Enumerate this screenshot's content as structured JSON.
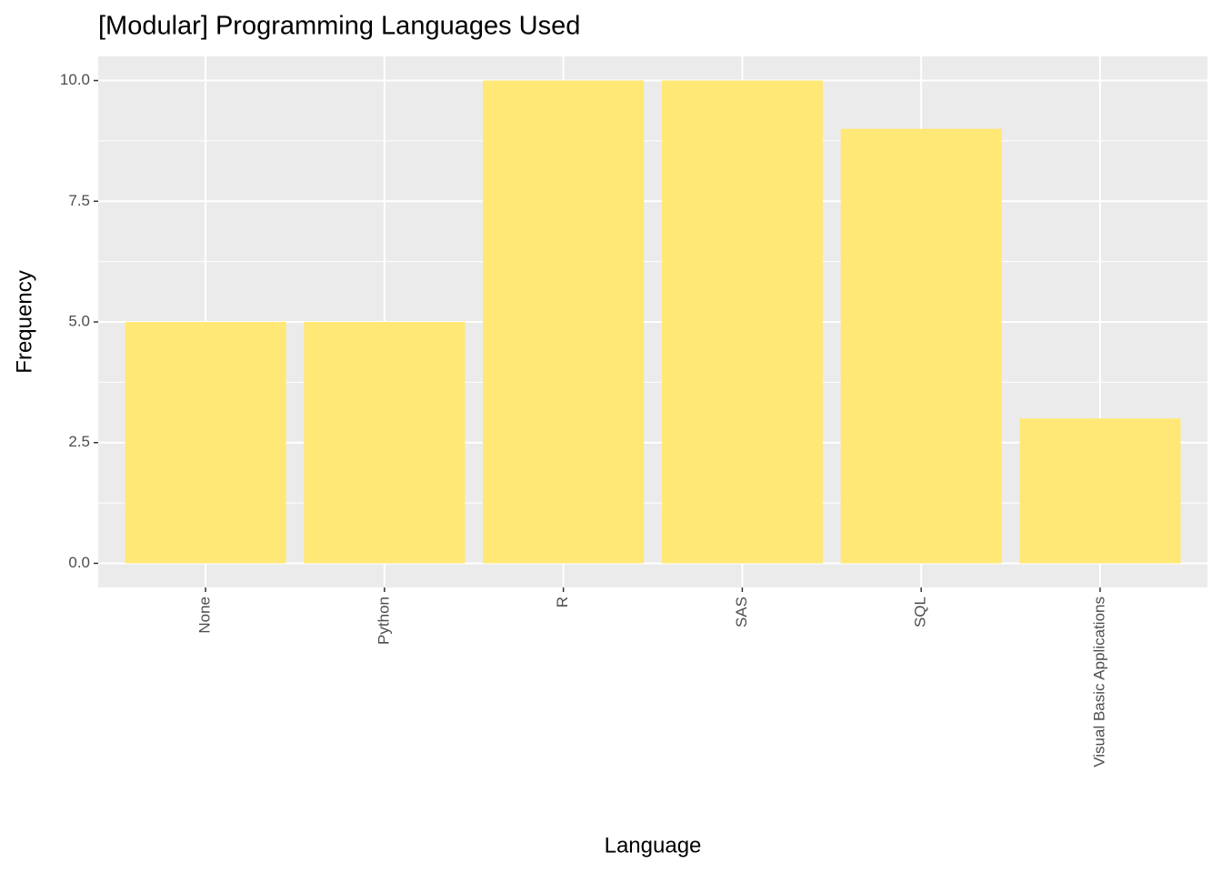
{
  "chart_data": {
    "type": "bar",
    "title": "[Modular] Programming Languages Used",
    "x_label": "Language",
    "y_label": "Frequency",
    "categories": [
      "None",
      "Python",
      "R",
      "SAS",
      "SQL",
      "Visual Basic Applications"
    ],
    "values": [
      5,
      5,
      10,
      10,
      9,
      3
    ],
    "color": "#ffe875",
    "ylim": [
      -0.5,
      10.5
    ],
    "yticks": [
      {
        "value": 0,
        "label": "0.0"
      },
      {
        "value": 2.5,
        "label": "2.5"
      },
      {
        "value": 5,
        "label": "5.0"
      },
      {
        "value": 7.5,
        "label": "7.5"
      },
      {
        "value": 10,
        "label": "10.0"
      }
    ],
    "grid": true
  }
}
